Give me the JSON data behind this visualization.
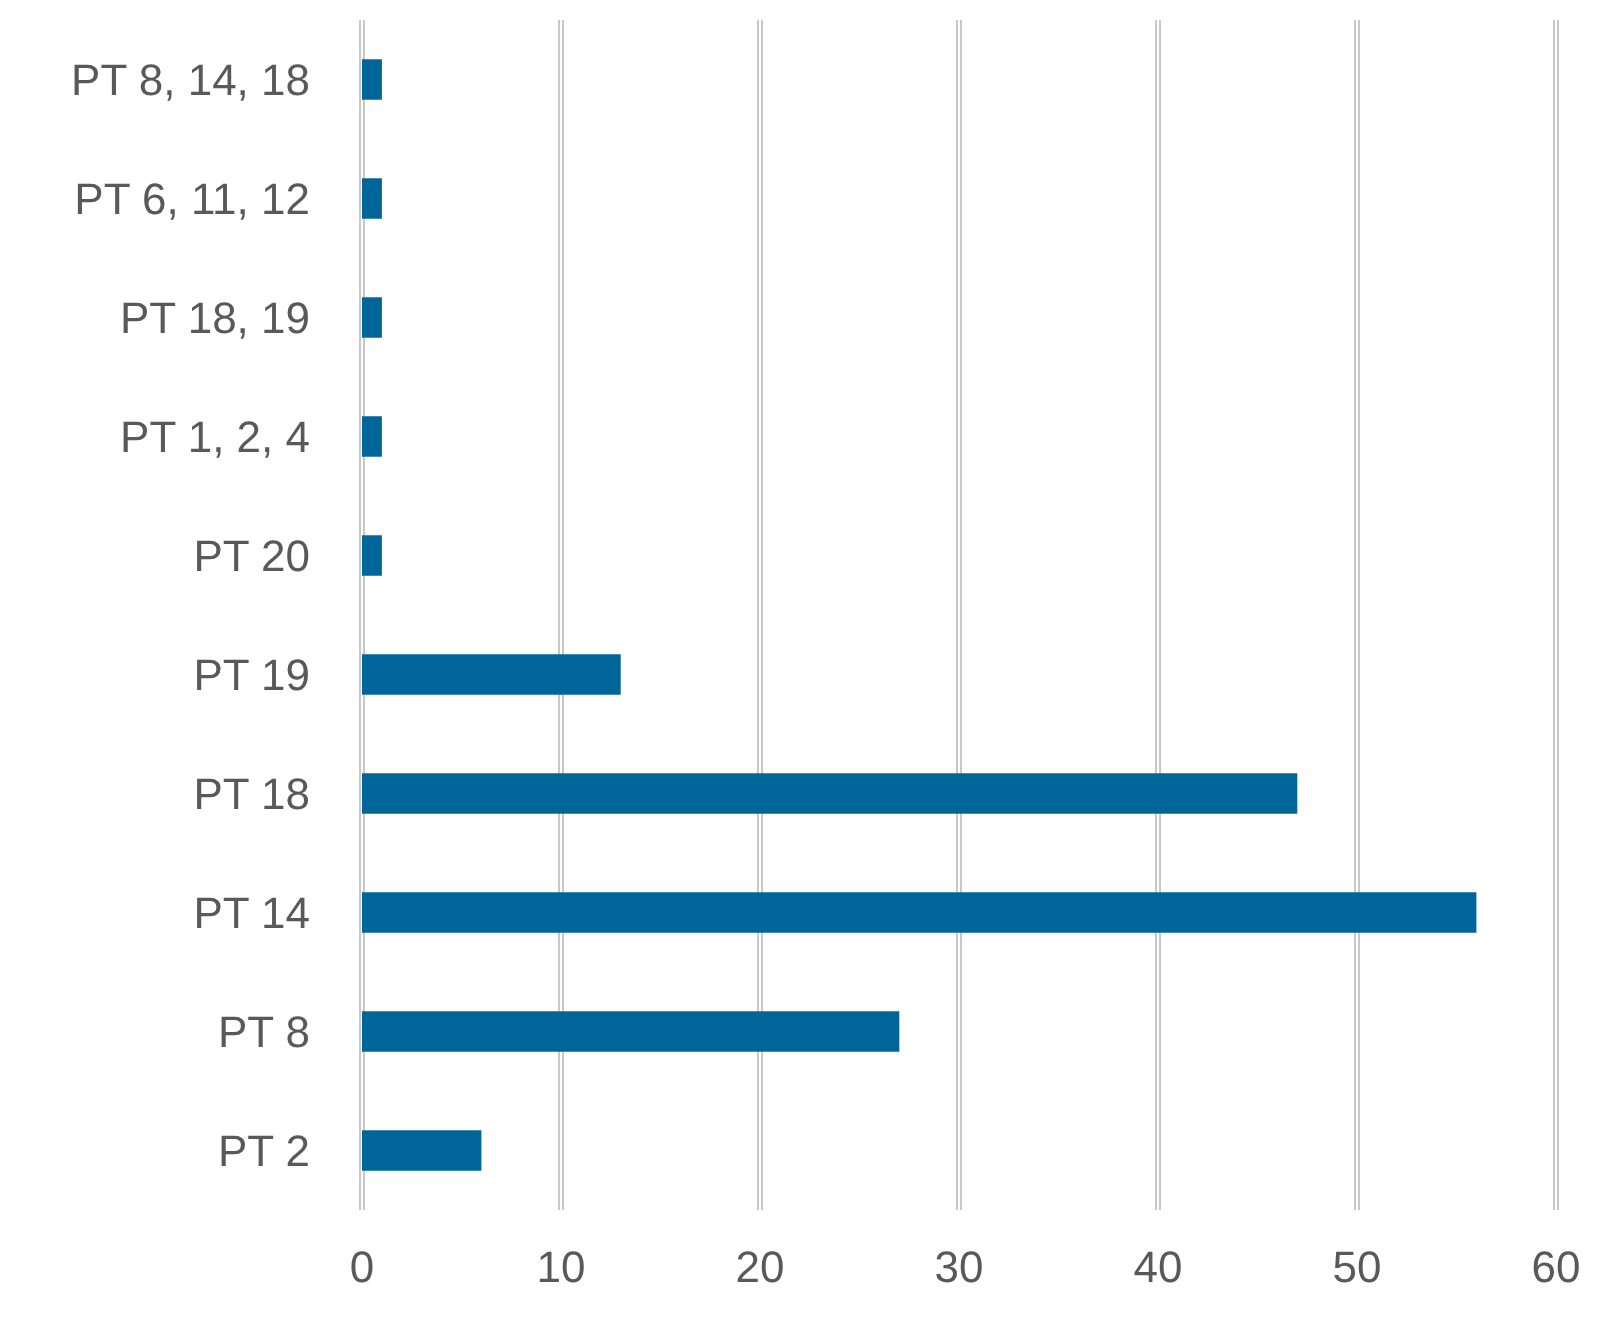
{
  "chart_data": {
    "type": "bar",
    "orientation": "horizontal",
    "categories": [
      "PT 8, 14, 18",
      "PT 6, 11, 12",
      "PT 18, 19",
      "PT 1, 2, 4",
      "PT 20",
      "PT 19",
      "PT 18",
      "PT 14",
      "PT 8",
      "PT 2"
    ],
    "values": [
      1,
      1,
      1,
      1,
      1,
      13,
      47,
      56,
      27,
      6
    ],
    "color": "#006699",
    "xlim": [
      0,
      60
    ],
    "xticks": [
      0,
      10,
      20,
      30,
      40,
      50,
      60
    ],
    "grid": "x"
  }
}
